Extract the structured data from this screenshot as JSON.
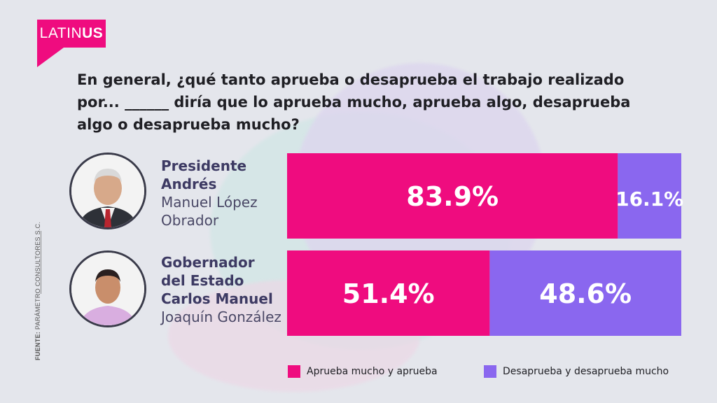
{
  "brand": {
    "logo_light": "LATIN",
    "logo_bold": "US",
    "color": "#ef0c7f"
  },
  "question": "En general, ¿qué tanto aprueba o desaprueba el trabajo realizado por... ______ diría que lo aprueba mucho, aprueba algo, desaprueba algo o desaprueba mucho?",
  "people": [
    {
      "bold_lines": [
        "Presidente",
        "Andrés"
      ],
      "regular_lines": [
        "Manuel López",
        "Obrador"
      ]
    },
    {
      "bold_lines": [
        "Gobernador",
        "del Estado",
        "Carlos Manuel"
      ],
      "regular_lines": [
        "Joaquín González"
      ]
    }
  ],
  "source": {
    "label": "FUENTE:",
    "text": "PARÁMETRO CONSULTORES S.C."
  },
  "chart_data": {
    "type": "bar",
    "stacked": true,
    "orientation": "horizontal",
    "categories": [
      "Presidente Andrés Manuel López Obrador",
      "Gobernador del Estado Carlos Manuel Joaquín González"
    ],
    "series": [
      {
        "name": "Aprueba mucho y aprueba",
        "values": [
          83.9,
          51.4
        ],
        "labels": [
          "83.9%",
          "51.4%"
        ],
        "color": "#ef0c7f"
      },
      {
        "name": "Desaprueba y desaprueba mucho",
        "values": [
          16.1,
          48.6
        ],
        "labels": [
          "16.1%",
          "48.6%"
        ],
        "color": "#8a67ef"
      }
    ],
    "xlim": [
      0,
      100
    ],
    "legend": "bottom-right"
  }
}
